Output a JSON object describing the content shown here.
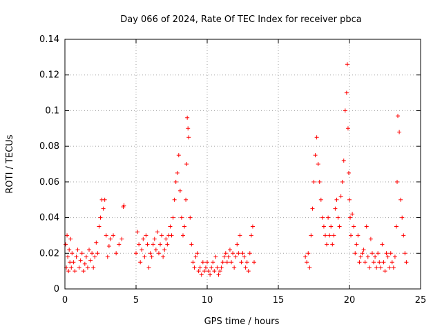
{
  "chart_data": {
    "type": "scatter",
    "title": "Day 066 of 2024, Rate Of TEC Index for receiver pbca",
    "xlabel": "GPS time / hours",
    "ylabel": "ROTI / TECUs",
    "xlim": [
      0,
      25
    ],
    "ylim": [
      0,
      0.14
    ],
    "xticks": [
      0,
      5,
      10,
      15,
      20,
      25
    ],
    "xtick_labels": [
      "0",
      "5",
      "10",
      "15",
      "20",
      "25"
    ],
    "yticks": [
      0,
      0.02,
      0.04,
      0.06,
      0.08,
      0.1,
      0.12,
      0.14
    ],
    "ytick_labels": [
      "0",
      "0.02",
      "0.04",
      "0.06",
      "0.08",
      "0.1",
      "0.12",
      "0.14"
    ],
    "grid": true,
    "marker": "+",
    "color": "#ff0000",
    "series": [
      {
        "name": "ROTI",
        "x": [
          0.05,
          0.1,
          0.15,
          0.2,
          0.25,
          0.3,
          0.35,
          0.4,
          0.45,
          0.5,
          0.6,
          0.7,
          0.8,
          0.9,
          1.0,
          1.1,
          1.2,
          1.3,
          1.4,
          1.5,
          1.6,
          1.7,
          1.8,
          1.9,
          2.0,
          2.1,
          2.2,
          2.3,
          2.4,
          2.5,
          2.6,
          2.7,
          2.8,
          2.9,
          3.0,
          3.1,
          3.2,
          3.4,
          3.6,
          3.8,
          4.0,
          4.1,
          4.15,
          5.0,
          5.1,
          5.2,
          5.3,
          5.4,
          5.5,
          5.6,
          5.7,
          5.8,
          5.9,
          6.0,
          6.1,
          6.2,
          6.3,
          6.4,
          6.5,
          6.6,
          6.7,
          6.8,
          6.9,
          7.0,
          7.1,
          7.2,
          7.3,
          7.4,
          7.5,
          7.6,
          7.7,
          7.8,
          7.9,
          8.0,
          8.1,
          8.2,
          8.3,
          8.4,
          8.5,
          8.55,
          8.6,
          8.65,
          8.7,
          8.8,
          8.9,
          9.0,
          9.1,
          9.2,
          9.3,
          9.4,
          9.5,
          9.6,
          9.7,
          9.8,
          9.9,
          10.0,
          10.1,
          10.2,
          10.3,
          10.4,
          10.5,
          10.6,
          10.7,
          10.8,
          10.9,
          11.0,
          11.1,
          11.2,
          11.3,
          11.4,
          11.5,
          11.6,
          11.7,
          11.8,
          11.9,
          12.0,
          12.1,
          12.2,
          12.3,
          12.4,
          12.5,
          12.6,
          12.7,
          12.8,
          12.9,
          13.0,
          13.1,
          13.2,
          13.3,
          16.9,
          17.0,
          17.1,
          17.2,
          17.3,
          17.4,
          17.5,
          17.6,
          17.7,
          17.8,
          17.9,
          18.0,
          18.1,
          18.2,
          18.3,
          18.4,
          18.5,
          18.6,
          18.7,
          18.8,
          18.9,
          19.0,
          19.1,
          19.2,
          19.3,
          19.4,
          19.5,
          19.6,
          19.7,
          19.8,
          19.85,
          19.9,
          19.95,
          20.0,
          20.05,
          20.1,
          20.2,
          20.3,
          20.4,
          20.5,
          20.6,
          20.7,
          20.8,
          20.9,
          21.0,
          21.1,
          21.2,
          21.3,
          21.4,
          21.5,
          21.6,
          21.7,
          21.8,
          21.9,
          22.0,
          22.1,
          22.2,
          22.3,
          22.4,
          22.5,
          22.6,
          22.7,
          22.8,
          22.9,
          23.0,
          23.1,
          23.2,
          23.3,
          23.35,
          23.4,
          23.5,
          23.6,
          23.7,
          23.8,
          23.9,
          24.0
        ],
        "y": [
          0.025,
          0.012,
          0.03,
          0.018,
          0.01,
          0.022,
          0.015,
          0.028,
          0.012,
          0.02,
          0.015,
          0.01,
          0.018,
          0.022,
          0.012,
          0.016,
          0.02,
          0.01,
          0.014,
          0.018,
          0.012,
          0.022,
          0.016,
          0.02,
          0.012,
          0.018,
          0.026,
          0.02,
          0.035,
          0.04,
          0.05,
          0.045,
          0.05,
          0.03,
          0.018,
          0.024,
          0.028,
          0.03,
          0.02,
          0.025,
          0.028,
          0.046,
          0.047,
          0.02,
          0.032,
          0.025,
          0.015,
          0.022,
          0.028,
          0.018,
          0.03,
          0.025,
          0.012,
          0.02,
          0.018,
          0.025,
          0.028,
          0.022,
          0.032,
          0.02,
          0.025,
          0.03,
          0.018,
          0.022,
          0.028,
          0.025,
          0.03,
          0.035,
          0.03,
          0.04,
          0.05,
          0.06,
          0.065,
          0.075,
          0.055,
          0.04,
          0.03,
          0.035,
          0.05,
          0.07,
          0.096,
          0.09,
          0.085,
          0.04,
          0.025,
          0.015,
          0.012,
          0.018,
          0.02,
          0.01,
          0.012,
          0.008,
          0.015,
          0.01,
          0.012,
          0.015,
          0.01,
          0.008,
          0.012,
          0.015,
          0.01,
          0.018,
          0.012,
          0.008,
          0.01,
          0.012,
          0.015,
          0.018,
          0.02,
          0.015,
          0.018,
          0.022,
          0.015,
          0.02,
          0.012,
          0.018,
          0.025,
          0.02,
          0.03,
          0.015,
          0.02,
          0.018,
          0.012,
          0.015,
          0.01,
          0.02,
          0.03,
          0.035,
          0.015,
          0.018,
          0.015,
          0.02,
          0.012,
          0.03,
          0.045,
          0.06,
          0.075,
          0.085,
          0.07,
          0.06,
          0.05,
          0.04,
          0.035,
          0.03,
          0.025,
          0.04,
          0.03,
          0.035,
          0.025,
          0.03,
          0.045,
          0.05,
          0.04,
          0.035,
          0.052,
          0.06,
          0.072,
          0.1,
          0.11,
          0.126,
          0.09,
          0.065,
          0.05,
          0.04,
          0.03,
          0.042,
          0.035,
          0.02,
          0.025,
          0.03,
          0.015,
          0.018,
          0.02,
          0.022,
          0.015,
          0.035,
          0.018,
          0.012,
          0.028,
          0.02,
          0.015,
          0.018,
          0.012,
          0.02,
          0.015,
          0.012,
          0.025,
          0.015,
          0.01,
          0.02,
          0.018,
          0.012,
          0.02,
          0.015,
          0.012,
          0.018,
          0.035,
          0.06,
          0.097,
          0.088,
          0.05,
          0.04,
          0.03,
          0.02,
          0.015
        ]
      }
    ]
  }
}
